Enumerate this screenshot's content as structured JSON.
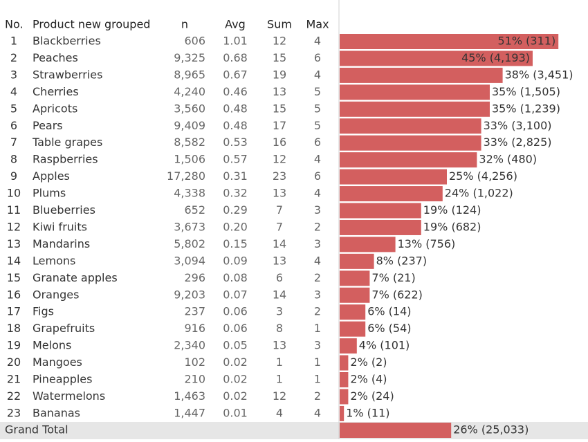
{
  "table": {
    "columns": [
      "No.",
      "Product new grouped",
      "n",
      "Avg",
      "Sum",
      "Max"
    ],
    "rows": [
      [
        1,
        "Blackberries",
        "606",
        "1.01",
        12,
        4
      ],
      [
        2,
        "Peaches",
        "9,325",
        "0.68",
        15,
        6
      ],
      [
        3,
        "Strawberries",
        "8,965",
        "0.67",
        19,
        4
      ],
      [
        4,
        "Cherries",
        "4,240",
        "0.46",
        13,
        5
      ],
      [
        5,
        "Apricots",
        "3,560",
        "0.48",
        15,
        5
      ],
      [
        6,
        "Pears",
        "9,409",
        "0.48",
        17,
        5
      ],
      [
        7,
        "Table grapes",
        "8,582",
        "0.53",
        16,
        6
      ],
      [
        8,
        "Raspberries",
        "1,506",
        "0.57",
        12,
        4
      ],
      [
        9,
        "Apples",
        "17,280",
        "0.31",
        23,
        6
      ],
      [
        10,
        "Plums",
        "4,338",
        "0.32",
        13,
        4
      ],
      [
        11,
        "Blueberries",
        "652",
        "0.29",
        7,
        3
      ],
      [
        12,
        "Kiwi fruits",
        "3,673",
        "0.20",
        7,
        2
      ],
      [
        13,
        "Mandarins",
        "5,802",
        "0.15",
        14,
        3
      ],
      [
        14,
        "Lemons",
        "3,094",
        "0.09",
        13,
        4
      ],
      [
        15,
        "Granate apples",
        "296",
        "0.08",
        6,
        2
      ],
      [
        16,
        "Oranges",
        "9,203",
        "0.07",
        14,
        3
      ],
      [
        17,
        "Figs",
        "237",
        "0.06",
        3,
        2
      ],
      [
        18,
        "Grapefruits",
        "916",
        "0.06",
        8,
        1
      ],
      [
        19,
        "Melons",
        "2,340",
        "0.05",
        13,
        3
      ],
      [
        20,
        "Mangoes",
        "102",
        "0.02",
        1,
        1
      ],
      [
        21,
        "Pineapples",
        "210",
        "0.02",
        1,
        1
      ],
      [
        22,
        "Watermelons",
        "1,463",
        "0.02",
        12,
        2
      ],
      [
        23,
        "Bananas",
        "1,447",
        "0.01",
        4,
        4
      ]
    ],
    "bars": {
      "color": "#d35f5f",
      "values": [
        51,
        45,
        38,
        35,
        35,
        33,
        33,
        32,
        25,
        24,
        19,
        19,
        13,
        8,
        7,
        7,
        6,
        6,
        4,
        2,
        2,
        2,
        1
      ],
      "value_labels": [
        "51% (311)",
        "45% (4,193)",
        "38% (3,451)",
        "35% (1,505)",
        "35% (1,239)",
        "33% (3,100)",
        "33% (2,825)",
        "32% (480)",
        "25% (4,256)",
        "24% (1,022)",
        "19% (124)",
        "19% (682)",
        "13% (756)",
        "8% (237)",
        "7% (21)",
        "7% (622)",
        "6% (14)",
        "6% (54)",
        "4% (101)",
        "2% (2)",
        "2% (4)",
        "2% (24)",
        "1% (11)"
      ]
    },
    "grand_total": {
      "label": "Grand Total",
      "value": 26,
      "value_label": "26% (25,033)"
    }
  }
}
